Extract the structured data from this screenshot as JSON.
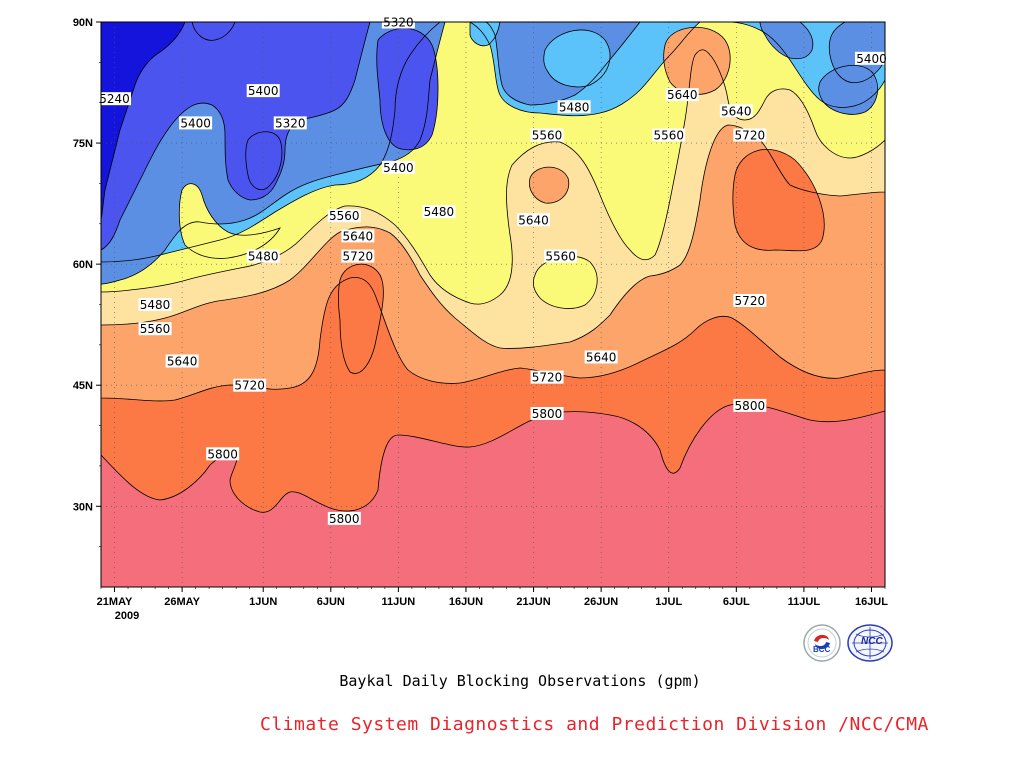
{
  "caption": "Baykal Daily Blocking Observations (gpm)",
  "credit": "Climate System Diagnostics and Prediction Division /NCC/CMA",
  "logos": [
    {
      "name": "bcc-logo",
      "text": "BCC"
    },
    {
      "name": "ncc-logo",
      "text": "NCC"
    }
  ],
  "colors": {
    "c5240": "#1414dc",
    "c5320": "#4b54ee",
    "c5400": "#5b8fe4",
    "c5480": "#5bc3fa",
    "c5560": "#fafa78",
    "c5640": "#fde2a0",
    "c5720": "#fca46a",
    "c5800": "#fc7844",
    "high": "#f46e7c"
  },
  "chart_data": {
    "type": "heatmap",
    "subtype": "filled contour (latitude-time Hovmoller)",
    "title": "Baykal Daily Blocking Observations (gpm)",
    "xlabel": "",
    "ylabel": "",
    "x_ticks": [
      "21MAY",
      "26MAY",
      "1JUN",
      "6JUN",
      "11JUN",
      "16JUN",
      "21JUN",
      "26JUN",
      "1JUL",
      "6JUL",
      "11JUL",
      "16JUL"
    ],
    "x_year_label": "2009",
    "x_range": [
      "2009-05-20",
      "2009-07-17"
    ],
    "y_ticks": [
      "30N",
      "45N",
      "60N",
      "75N",
      "90N"
    ],
    "y_range": [
      20,
      90
    ],
    "grid": true,
    "contour_levels": [
      5240,
      5320,
      5400,
      5480,
      5560,
      5640,
      5720,
      5800
    ],
    "contour_labels": [
      {
        "value": "5240",
        "date": "2009-05-21",
        "lat": 80.5
      },
      {
        "value": "5400",
        "date": "2009-05-27",
        "lat": 77.5
      },
      {
        "value": "5400",
        "date": "2009-06-01",
        "lat": 81.5
      },
      {
        "value": "5320",
        "date": "2009-06-03",
        "lat": 77.5
      },
      {
        "value": "5320",
        "date": "2009-06-11",
        "lat": 90
      },
      {
        "value": "5400",
        "date": "2009-06-11",
        "lat": 72
      },
      {
        "value": "5400",
        "date": "2009-07-16",
        "lat": 85.5
      },
      {
        "value": "5480",
        "date": "2009-06-14",
        "lat": 66.5
      },
      {
        "value": "5480",
        "date": "2009-06-24",
        "lat": 79.5
      },
      {
        "value": "5480",
        "date": "2009-06-01",
        "lat": 61
      },
      {
        "value": "5480",
        "date": "2009-05-24",
        "lat": 55
      },
      {
        "value": "5560",
        "date": "2009-06-22",
        "lat": 76
      },
      {
        "value": "5560",
        "date": "2009-07-01",
        "lat": 76
      },
      {
        "value": "5560",
        "date": "2009-06-23",
        "lat": 61
      },
      {
        "value": "5560",
        "date": "2009-06-07",
        "lat": 66
      },
      {
        "value": "5560",
        "date": "2009-05-24",
        "lat": 52
      },
      {
        "value": "5640",
        "date": "2009-07-02",
        "lat": 81
      },
      {
        "value": "5640",
        "date": "2009-07-06",
        "lat": 79
      },
      {
        "value": "5640",
        "date": "2009-06-21",
        "lat": 65.5
      },
      {
        "value": "5640",
        "date": "2009-06-08",
        "lat": 63.5
      },
      {
        "value": "5640",
        "date": "2009-06-26",
        "lat": 48.5
      },
      {
        "value": "5640",
        "date": "2009-05-26",
        "lat": 48
      },
      {
        "value": "5720",
        "date": "2009-07-07",
        "lat": 76
      },
      {
        "value": "5720",
        "date": "2009-06-08",
        "lat": 61
      },
      {
        "value": "5720",
        "date": "2009-06-22",
        "lat": 46
      },
      {
        "value": "5720",
        "date": "2009-07-07",
        "lat": 55.5
      },
      {
        "value": "5720",
        "date": "2009-05-31",
        "lat": 45
      },
      {
        "value": "5800",
        "date": "2009-06-22",
        "lat": 41.5
      },
      {
        "value": "5800",
        "date": "2009-07-07",
        "lat": 42.5
      },
      {
        "value": "5800",
        "date": "2009-05-29",
        "lat": 36.5
      },
      {
        "value": "5800",
        "date": "2009-06-07",
        "lat": 28.5
      }
    ]
  }
}
